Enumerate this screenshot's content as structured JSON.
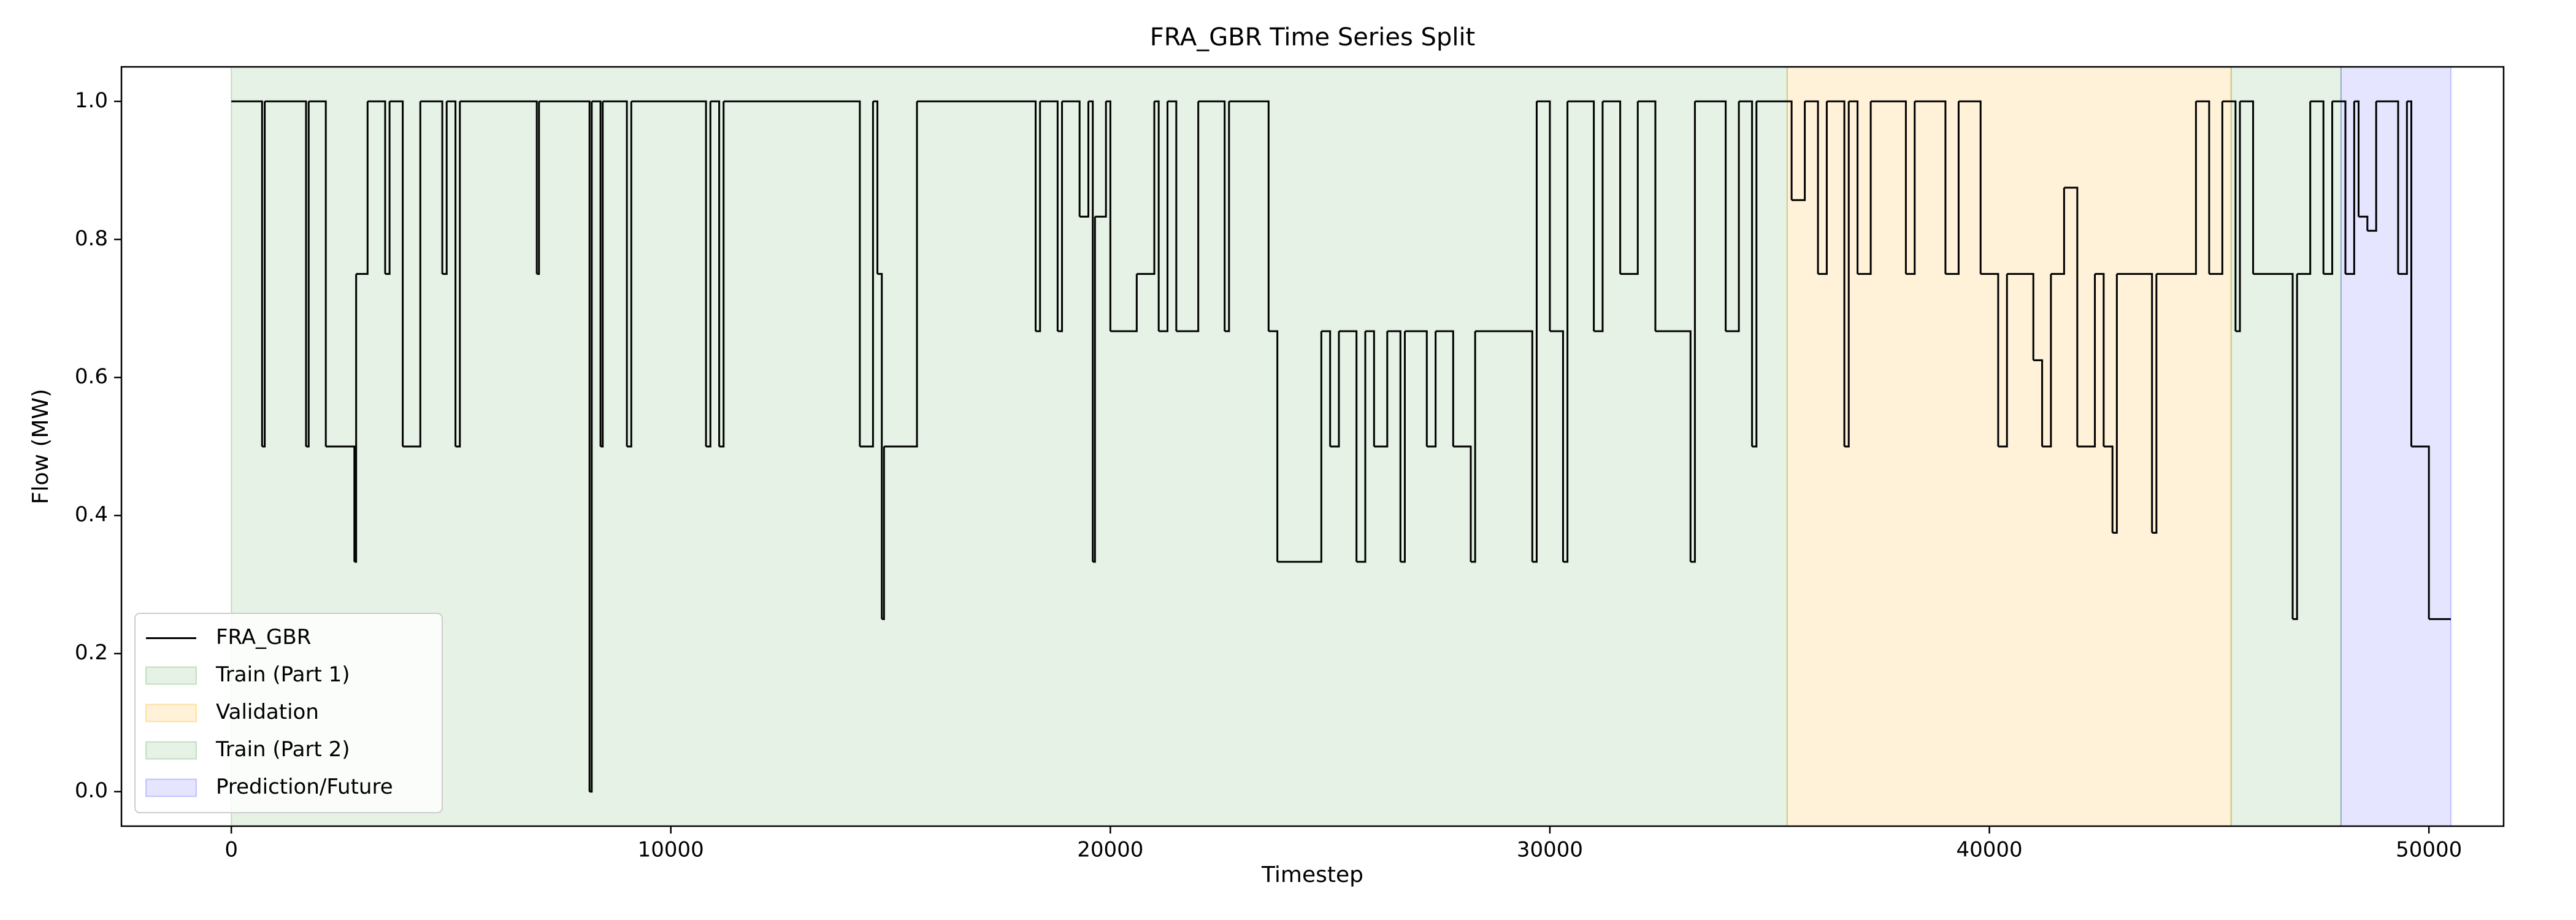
{
  "chart_data": {
    "type": "line",
    "drawstyle": "steps-post",
    "title": "FRA_GBR Time Series Split",
    "xlabel": "Timestep",
    "ylabel": "Flow (MW)",
    "xlim": [
      -2500,
      51700
    ],
    "ylim": [
      -0.05,
      1.05
    ],
    "xticks": [
      0,
      10000,
      20000,
      30000,
      40000,
      50000
    ],
    "yticks": [
      {
        "value": 0,
        "label": "0.0"
      },
      0.2,
      0.4,
      0.6,
      0.8,
      {
        "value": 1,
        "label": "1.0"
      }
    ],
    "legend": "lower left",
    "series": [
      {
        "name": "FRA_GBR",
        "color": "#000000",
        "x": [
          0,
          700,
          760,
          1700,
          1760,
          2150,
          2800,
          2840,
          3100,
          3500,
          3600,
          3900,
          4300,
          4800,
          4900,
          5100,
          5200,
          6950,
          7000,
          8150,
          8200,
          8400,
          8450,
          9000,
          9100,
          10800,
          10900,
          11100,
          11200,
          14300,
          14600,
          14700,
          14800,
          14850,
          15600,
          18300,
          18400,
          18800,
          18900,
          19300,
          19500,
          19600,
          19650,
          19900,
          20000,
          20600,
          21000,
          21100,
          21300,
          21500,
          22000,
          22600,
          22700,
          23600,
          23800,
          24800,
          25000,
          25200,
          25600,
          25800,
          26000,
          26300,
          26600,
          26700,
          27200,
          27400,
          27800,
          28200,
          28300,
          29600,
          29700,
          30000,
          30300,
          30400,
          31000,
          31200,
          31600,
          32000,
          32400,
          33200,
          33300,
          34000,
          34300,
          34600,
          34700,
          35500,
          35800,
          36100,
          36300,
          36700,
          36800,
          37000,
          37300,
          38100,
          38300,
          39000,
          39300,
          39800,
          40200,
          40400,
          41000,
          41200,
          41400,
          41700,
          42000,
          42400,
          42600,
          42800,
          42900,
          43700,
          43800,
          44700,
          45000,
          45300,
          45600,
          45700,
          46000,
          46900,
          47000,
          47300,
          47600,
          47800,
          48100,
          48300,
          48400,
          48600,
          48800,
          49300,
          49500,
          49600,
          50000,
          50500
        ],
        "values": [
          1.0,
          0.5,
          1.0,
          0.5,
          1.0,
          0.5,
          0.333,
          0.75,
          1.0,
          0.75,
          1.0,
          0.5,
          1.0,
          0.75,
          1.0,
          0.5,
          1.0,
          0.75,
          1.0,
          0.0,
          1.0,
          0.5,
          1.0,
          0.5,
          1.0,
          0.5,
          1.0,
          0.5,
          1.0,
          0.5,
          1.0,
          0.75,
          0.25,
          0.5,
          1.0,
          0.667,
          1.0,
          0.667,
          1.0,
          0.833,
          1.0,
          0.333,
          0.833,
          1.0,
          0.667,
          0.75,
          1.0,
          0.667,
          1.0,
          0.667,
          1.0,
          0.667,
          1.0,
          0.667,
          0.333,
          0.667,
          0.5,
          0.667,
          0.333,
          0.667,
          0.5,
          0.667,
          0.333,
          0.667,
          0.5,
          0.667,
          0.5,
          0.333,
          0.667,
          0.333,
          1.0,
          0.667,
          0.333,
          1.0,
          0.667,
          1.0,
          0.75,
          1.0,
          0.667,
          0.333,
          1.0,
          0.667,
          1.0,
          0.5,
          1.0,
          0.857,
          1.0,
          0.75,
          1.0,
          0.5,
          1.0,
          0.75,
          1.0,
          0.75,
          1.0,
          0.75,
          1.0,
          0.75,
          0.5,
          0.75,
          0.625,
          0.5,
          0.75,
          0.875,
          0.5,
          0.75,
          0.5,
          0.375,
          0.75,
          0.375,
          0.75,
          1.0,
          0.75,
          1.0,
          0.667,
          1.0,
          0.75,
          0.25,
          0.75,
          1.0,
          0.75,
          1.0,
          0.75,
          1.0,
          0.833,
          0.8125,
          1.0,
          0.75,
          1.0,
          0.5,
          0.25,
          0.25
        ]
      }
    ],
    "spans": [
      {
        "name": "Train (Part 1)",
        "color": "green",
        "alpha": 0.1,
        "start": 0,
        "end": 35400
      },
      {
        "name": "Validation",
        "color": "orange",
        "alpha": 0.15,
        "start": 35400,
        "end": 45500
      },
      {
        "name": "Train (Part 2)",
        "color": "green",
        "alpha": 0.1,
        "start": 45500,
        "end": 48000
      },
      {
        "name": "Prediction/Future",
        "color": "blue",
        "alpha": 0.1,
        "start": 48000,
        "end": 50500
      }
    ]
  }
}
